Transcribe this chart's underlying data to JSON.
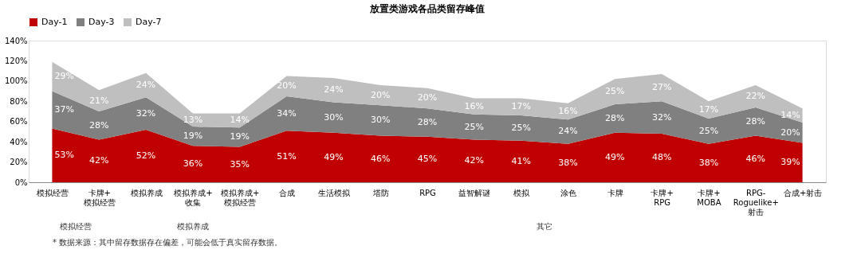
{
  "chart_data": {
    "type": "area",
    "stacked": true,
    "title": "放置类游戏各品类留存峰值",
    "categories": [
      "模拟经营",
      "卡牌+模拟经营",
      "模拟养成",
      "模拟养成+收集",
      "模拟养成+模拟经营",
      "合成",
      "生活模拟",
      "塔防",
      "RPG",
      "益智解谜",
      "模拟",
      "涂色",
      "卡牌",
      "卡牌+RPG",
      "卡牌+MOBA",
      "RPG-Roguelike+射击",
      "合成+射击"
    ],
    "series": [
      {
        "name": "Day-1",
        "color": "#c00000",
        "values": [
          53,
          42,
          52,
          36,
          35,
          51,
          49,
          46,
          45,
          42,
          41,
          38,
          49,
          48,
          38,
          46,
          39
        ],
        "value_labels": [
          "53%",
          "42%",
          "52%",
          "36%",
          "35%",
          "51%",
          "49%",
          "46%",
          "45%",
          "42%",
          "41%",
          "38%",
          "49%",
          "48%",
          "38%",
          "46%",
          "39%"
        ]
      },
      {
        "name": "Day-3",
        "color": "#808080",
        "values": [
          37,
          28,
          32,
          19,
          19,
          34,
          30,
          30,
          28,
          25,
          25,
          24,
          28,
          32,
          25,
          28,
          20
        ],
        "value_labels": [
          "37%",
          "28%",
          "32%",
          "19%",
          "19%",
          "34%",
          "30%",
          "30%",
          "28%",
          "25%",
          "25%",
          "24%",
          "28%",
          "32%",
          "25%",
          "28%",
          "20%"
        ]
      },
      {
        "name": "Day-7",
        "color": "#bfbfbf",
        "values": [
          29,
          21,
          24,
          13,
          14,
          20,
          24,
          20,
          20,
          16,
          17,
          16,
          25,
          27,
          17,
          22,
          14
        ],
        "value_labels": [
          "29%",
          "21%",
          "24%",
          "13%",
          "14%",
          "20%",
          "24%",
          "20%",
          "20%",
          "16%",
          "17%",
          "16%",
          "25%",
          "27%",
          "17%",
          "22%",
          "14%"
        ]
      }
    ],
    "ylim": [
      0,
      140
    ],
    "yticks": [
      {
        "value": 0,
        "label": "0%"
      },
      {
        "value": 20,
        "label": "20%"
      },
      {
        "value": 40,
        "label": "40%"
      },
      {
        "value": 60,
        "label": "60%"
      },
      {
        "value": 80,
        "label": "80%"
      },
      {
        "value": 100,
        "label": "100%"
      },
      {
        "value": 120,
        "label": "120%"
      },
      {
        "value": 140,
        "label": "140%"
      }
    ],
    "grid": false,
    "legend": "top",
    "annotations": [
      "模拟经营",
      "模拟养成",
      "其它",
      "* 数据来源：其中留存数据存在偏差，可能会低于真实留存数据。"
    ]
  }
}
